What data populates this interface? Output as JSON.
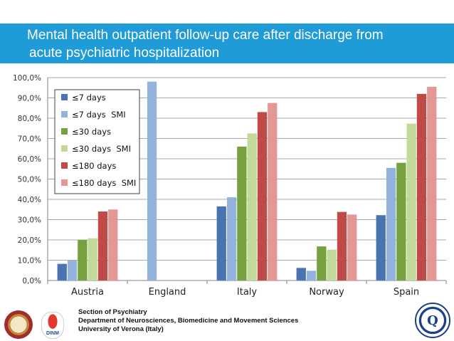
{
  "slide": {
    "title_line1": "Mental health outpatient follow-up care after discharge from",
    "title_line2": "acute psychiatric hospitalization",
    "footer_line1": "Section of Psychiatry",
    "footer_line2": "Department  of Neurosciences, Biomedicine and Movement Sciences",
    "footer_line3": "University of Verona (Italy)",
    "colors": {
      "title_bg": "#1f9bd8",
      "title_text": "#ffffff"
    },
    "logos": {
      "left_1": "university-seal-icon",
      "left_2": "dinm-logo-icon",
      "right": "refinement-q-logo-icon",
      "dinm_text": "DINM",
      "refinement_text": "Q"
    }
  },
  "chart_data": {
    "type": "bar",
    "title": "",
    "xlabel": "",
    "ylabel": "",
    "categories": [
      "Austria",
      "England",
      "Italy",
      "Norway",
      "Spain"
    ],
    "ylim": [
      0,
      100
    ],
    "ytick_step": 10,
    "ytick_format": "percent_comma_1dp",
    "grid": true,
    "legend_position": "top-left",
    "series": [
      {
        "name": "≤7 days",
        "color": "#4a74b0",
        "values": [
          8.2,
          null,
          36.5,
          6.2,
          32.2
        ]
      },
      {
        "name": "≤7 days  SMI",
        "color": "#93b3dd",
        "values": [
          9.8,
          98.0,
          41.0,
          4.8,
          55.5
        ]
      },
      {
        "name": "≤30 days",
        "color": "#77a13f",
        "values": [
          20.0,
          null,
          66.0,
          16.8,
          58.0
        ]
      },
      {
        "name": "≤30 days  SMI",
        "color": "#c3d99a",
        "values": [
          20.8,
          null,
          72.5,
          15.2,
          77.3
        ]
      },
      {
        "name": "≤180 days",
        "color": "#bf4a47",
        "values": [
          34.0,
          null,
          83.0,
          33.8,
          92.0
        ]
      },
      {
        "name": "≤180 days  SMI",
        "color": "#e49895",
        "values": [
          35.0,
          null,
          87.5,
          32.5,
          95.5
        ]
      }
    ]
  }
}
